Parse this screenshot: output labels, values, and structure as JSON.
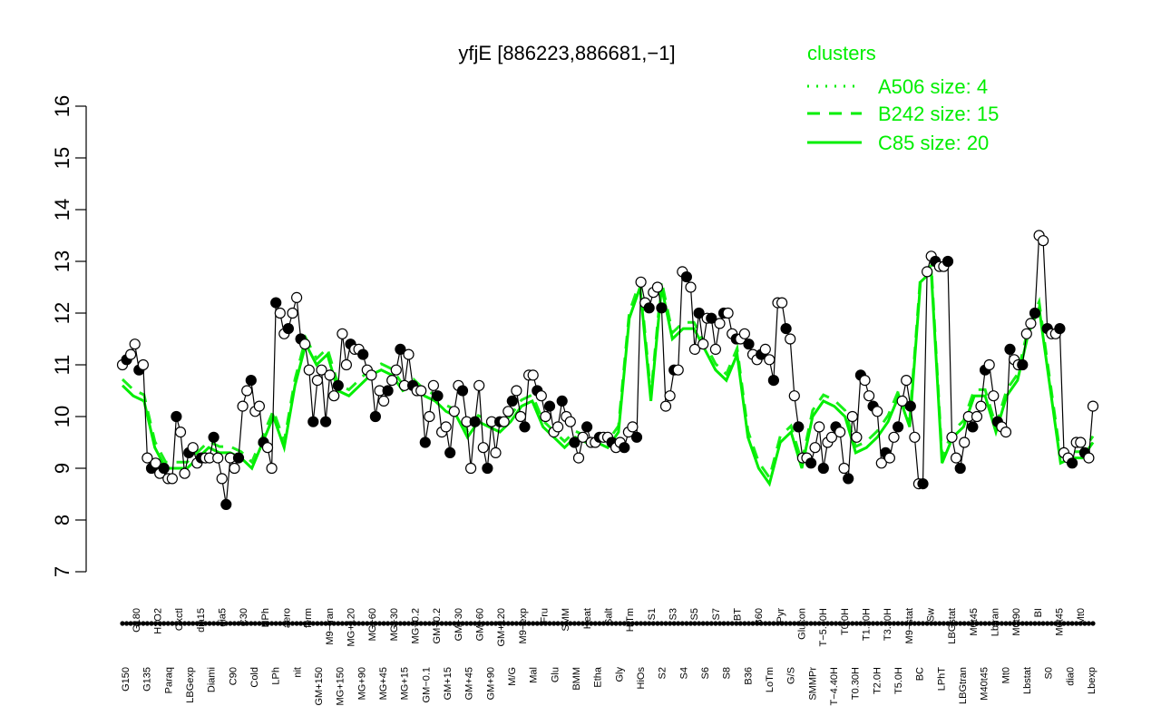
{
  "chart_data": {
    "type": "line",
    "title": "yfjE [886223,886681,−1]",
    "xlabel": "",
    "ylabel": "",
    "ylim": [
      7,
      16
    ],
    "yticks": [
      7,
      8,
      9,
      10,
      11,
      12,
      13,
      14,
      15,
      16
    ],
    "grid": false,
    "legend_position": "top-right",
    "legend_title": "clusters",
    "colors": {
      "series": "#00ee00",
      "points": "#000000",
      "axis": "#000000"
    },
    "x_tick_labels": [
      "G150",
      "G180",
      "G135",
      "H2O2",
      "Paraq",
      "Oxctl",
      "LBGexp",
      "dia15",
      "Diami",
      "dia5",
      "C90",
      "C30",
      "Cold",
      "HPh",
      "LPh",
      "aero",
      "nit",
      "ferm",
      "GM+150",
      "M9−tran",
      "MG+150",
      "MG+120",
      "MG+90",
      "MG+60",
      "MG+45",
      "MG+30",
      "MG+15",
      "MG−0.2",
      "GM−0.1",
      "GM−0.2",
      "GM+15",
      "GM+30",
      "GM+45",
      "GM+60",
      "GM+90",
      "GM+120",
      "M/G",
      "M9−exp",
      "Mal",
      "Fru",
      "Glu",
      "SMM",
      "BMM",
      "Heat",
      "Etha",
      "Salt",
      "Gly",
      "HiTm",
      "HiOs",
      "S1",
      "S2",
      "S3",
      "S4",
      "S5",
      "S6",
      "S7",
      "S8",
      "BT",
      "B36",
      "B60",
      "LoTm",
      "Pyr",
      "G/S",
      "Glucon",
      "SMMPr",
      "T−5.40H",
      "T−4.40H",
      "T0.0H",
      "T0.30H",
      "T1.30H",
      "T2.0H",
      "T3.30H",
      "T5.0H",
      "M9−stat",
      "BC",
      "Sw",
      "LPhT",
      "LBGstat",
      "LBGtran",
      "M0t45",
      "M40t45",
      "Lbtran",
      "Mt0",
      "M0t90",
      "Lbstat",
      "BI",
      "S0",
      "M0t45",
      "dia0",
      "Mt0",
      "Lbexp"
    ],
    "series": [
      {
        "name": "A506 size: 4",
        "style": "dotted"
      },
      {
        "name": "B242 size: 15",
        "style": "dashed"
      },
      {
        "name": "C85 size: 20",
        "style": "solid"
      }
    ],
    "points": [
      [
        11.0,
        11.1,
        11.2,
        11.4,
        10.9,
        11.0,
        9.2
      ],
      [
        9.0,
        9.1,
        8.9,
        9.0,
        8.8,
        8.8,
        10.0
      ],
      [
        9.7,
        8.9,
        9.3,
        9.4,
        9.1,
        9.2,
        9.2
      ],
      [
        9.2,
        9.6,
        9.2,
        8.8,
        8.3,
        9.2,
        9.0
      ],
      [
        9.2,
        10.2,
        10.5,
        10.7,
        10.1,
        10.2,
        9.5
      ],
      [
        9.4,
        9.0,
        12.2,
        12.0,
        11.6,
        11.7,
        12.0
      ],
      [
        12.3,
        11.5,
        11.4,
        10.9,
        9.9,
        10.7,
        10.9
      ],
      [
        9.9,
        10.8,
        10.4,
        10.6,
        11.6,
        11.0,
        11.4
      ],
      [
        11.3,
        11.3,
        11.2,
        10.9,
        10.8,
        10.0,
        10.5
      ],
      [
        10.3,
        10.5,
        10.7,
        10.9,
        11.3,
        10.6,
        11.2
      ],
      [
        10.6,
        10.5,
        10.5,
        9.5,
        10.0,
        10.6,
        10.4
      ],
      [
        9.7,
        9.8,
        9.3,
        10.1,
        10.6,
        10.5,
        9.9
      ],
      [
        9.0,
        9.9,
        10.6,
        9.4,
        9.0,
        9.9,
        9.3
      ],
      [
        9.9,
        9.9,
        10.1,
        10.3,
        10.5,
        10.0,
        9.8
      ],
      [
        10.8,
        10.8,
        10.5,
        10.4,
        10.0,
        10.2,
        9.7
      ],
      [
        9.8,
        10.3,
        10.0,
        9.9,
        9.5,
        9.2,
        9.6
      ],
      [
        9.8,
        9.5,
        9.5,
        9.6,
        9.6,
        9.6,
        9.5
      ],
      [
        9.4,
        9.5,
        9.4,
        9.7,
        9.8,
        9.6,
        12.6
      ],
      [
        12.2,
        12.1,
        12.4,
        12.5,
        12.1,
        10.2,
        10.4
      ],
      [
        10.9,
        10.9,
        12.8,
        12.7,
        12.5,
        11.3,
        12.0
      ],
      [
        11.4,
        11.9,
        11.9,
        11.3,
        11.8,
        12.0,
        12.0
      ],
      [
        11.6,
        11.5,
        11.5,
        11.6,
        11.4,
        11.2,
        11.1
      ],
      [
        11.2,
        11.3,
        11.1,
        10.7,
        12.2,
        12.2,
        11.7
      ],
      [
        11.5,
        10.4,
        9.8,
        9.2,
        9.2,
        9.1,
        9.4
      ],
      [
        9.8,
        9.0,
        9.5,
        9.6,
        9.8,
        9.7,
        9.0
      ],
      [
        8.8,
        10.0,
        9.6,
        10.8,
        10.7,
        10.4,
        10.2
      ],
      [
        10.1,
        9.1,
        9.3,
        9.2,
        9.6,
        9.8,
        10.3
      ],
      [
        10.7,
        10.2,
        9.6,
        8.7,
        8.7,
        12.8,
        13.1
      ],
      [
        13.0,
        12.9,
        12.9,
        13.0,
        9.6,
        9.2,
        9.0
      ],
      [
        9.5,
        10.0,
        9.8,
        10.0,
        10.2,
        10.9,
        11.0
      ],
      [
        10.4,
        9.9,
        9.8,
        9.7,
        11.3,
        11.1,
        11.0
      ],
      [
        11.0,
        11.6,
        11.8,
        12.0,
        13.5,
        13.4,
        11.7
      ],
      [
        11.6,
        11.6,
        11.7,
        9.3,
        9.2,
        9.1,
        9.5
      ],
      [
        9.5,
        9.3,
        9.2,
        10.2
      ]
    ],
    "cluster_lines": {
      "C85": [
        10.6,
        10.4,
        10.3,
        9.4,
        9.0,
        9.0,
        9.0,
        9.2,
        9.4,
        9.3,
        9.3,
        9.2,
        9.0,
        9.5,
        10.0,
        9.4,
        10.6,
        11.4,
        11.0,
        11.2,
        10.5,
        10.4,
        10.6,
        10.8,
        10.9,
        10.8,
        10.5,
        10.6,
        10.4,
        10.3,
        10.1,
        10.0,
        9.6,
        9.9,
        9.8,
        9.7,
        9.9,
        10.2,
        10.3,
        9.8,
        9.6,
        9.4,
        9.6,
        9.5,
        9.5,
        9.4,
        9.7,
        11.9,
        12.5,
        10.3,
        12.5,
        11.5,
        11.7,
        11.7,
        11.3,
        10.9,
        10.7,
        11.2,
        9.6,
        9.0,
        8.7,
        9.5,
        9.7,
        9.0,
        10.0,
        10.3,
        10.2,
        10.0,
        9.3,
        9.4,
        9.6,
        9.9,
        10.4,
        9.8,
        12.6,
        12.8,
        9.1,
        9.6,
        9.8,
        10.4,
        10.4,
        9.7,
        10.4,
        10.7,
        11.6,
        12.1,
        10.6,
        9.1,
        9.2,
        9.2,
        9.5
      ],
      "B242": [
        10.6,
        10.4,
        10.3,
        9.4,
        9.0,
        9.0,
        9.0,
        9.2,
        9.4,
        9.3,
        9.3,
        9.2,
        9.0,
        9.5,
        10.0,
        9.4,
        10.6,
        11.4,
        11.0,
        11.2,
        10.5,
        10.4,
        10.6,
        10.8,
        10.9,
        10.8,
        10.5,
        10.6,
        10.4,
        10.3,
        10.1,
        10.0,
        9.6,
        9.9,
        9.8,
        9.7,
        9.9,
        10.2,
        10.3,
        9.8,
        9.6,
        9.4,
        9.6,
        9.5,
        9.5,
        9.4,
        9.7,
        11.9,
        12.5,
        10.3,
        12.5,
        11.5,
        11.7,
        11.7,
        11.3,
        10.9,
        10.7,
        11.2,
        9.6,
        9.0,
        8.7,
        9.5,
        9.7,
        9.0,
        10.0,
        10.3,
        10.2,
        10.0,
        9.3,
        9.4,
        9.6,
        9.9,
        10.4,
        9.8,
        12.6,
        12.8,
        9.1,
        9.6,
        9.8,
        10.4,
        10.4,
        9.7,
        10.4,
        10.7,
        11.6,
        12.1,
        10.6,
        9.1,
        9.2,
        9.2,
        9.5
      ]
    }
  }
}
